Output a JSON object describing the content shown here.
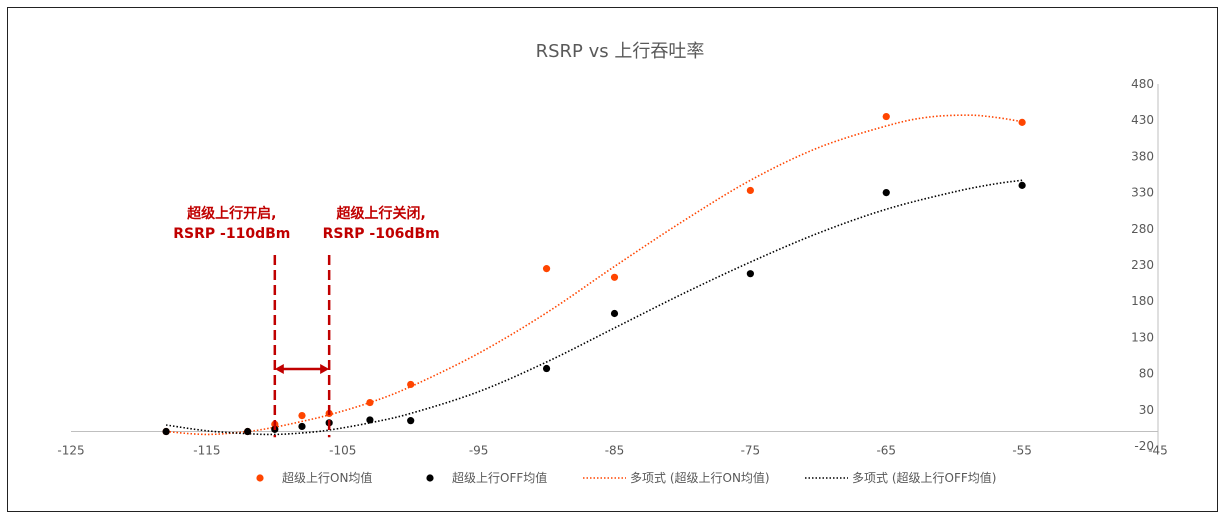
{
  "chart_data": {
    "type": "scatter",
    "title": "RSRP vs 上行吞吐率",
    "xlim": [
      -125,
      -45
    ],
    "ylim": [
      -20,
      480
    ],
    "x_ticks": [
      -125,
      -115,
      -105,
      -95,
      -85,
      -75,
      -65,
      -55,
      -45
    ],
    "y_ticks": [
      -20,
      30,
      80,
      130,
      180,
      230,
      280,
      330,
      380,
      430,
      480
    ],
    "x_tick_labels": [
      "-125",
      "-115",
      "-105",
      "-95",
      "-85",
      "-75",
      "-65",
      "-55",
      "-45"
    ],
    "y_tick_labels": [
      "-20",
      "30",
      "80",
      "130",
      "180",
      "230",
      "280",
      "330",
      "380",
      "430",
      "480"
    ],
    "grid": false,
    "legend_position": "bottom",
    "series": [
      {
        "name": "超级上行ON均值",
        "kind": "scatter",
        "color": "#ff4500",
        "points": [
          [
            -118,
            0
          ],
          [
            -112,
            0
          ],
          [
            -110,
            10
          ],
          [
            -108,
            22
          ],
          [
            -106,
            25
          ],
          [
            -103,
            40
          ],
          [
            -100,
            65
          ],
          [
            -90,
            225
          ],
          [
            -85,
            213
          ],
          [
            -75,
            333
          ],
          [
            -65,
            435
          ],
          [
            -55,
            427
          ]
        ]
      },
      {
        "name": "超级上行OFF均值",
        "kind": "scatter",
        "color": "#000000",
        "points": [
          [
            -118,
            0
          ],
          [
            -112,
            0
          ],
          [
            -110,
            3
          ],
          [
            -108,
            7
          ],
          [
            -106,
            12
          ],
          [
            -103,
            16
          ],
          [
            -100,
            15
          ],
          [
            -90,
            87
          ],
          [
            -85,
            163
          ],
          [
            -75,
            218
          ],
          [
            -65,
            330
          ],
          [
            -55,
            340
          ]
        ]
      },
      {
        "name": "多项式 (超级上行ON均值)",
        "kind": "trendline",
        "color": "#ff4500",
        "points": [
          [
            -118,
            0
          ],
          [
            -115,
            -4
          ],
          [
            -112,
            0
          ],
          [
            -110,
            6
          ],
          [
            -108,
            14
          ],
          [
            -106,
            23
          ],
          [
            -103,
            40
          ],
          [
            -100,
            62
          ],
          [
            -95,
            108
          ],
          [
            -90,
            164
          ],
          [
            -85,
            228
          ],
          [
            -80,
            290
          ],
          [
            -75,
            347
          ],
          [
            -70,
            392
          ],
          [
            -65,
            422
          ],
          [
            -62,
            434
          ],
          [
            -59,
            437
          ],
          [
            -57,
            434
          ],
          [
            -55,
            428
          ]
        ]
      },
      {
        "name": "多项式 (超级上行OFF均值)",
        "kind": "trendline",
        "color": "#000000",
        "points": [
          [
            -118,
            9
          ],
          [
            -115,
            1
          ],
          [
            -112,
            -3
          ],
          [
            -110,
            -4
          ],
          [
            -108,
            -2
          ],
          [
            -106,
            2
          ],
          [
            -103,
            12
          ],
          [
            -100,
            25
          ],
          [
            -95,
            55
          ],
          [
            -90,
            96
          ],
          [
            -85,
            143
          ],
          [
            -80,
            190
          ],
          [
            -75,
            234
          ],
          [
            -70,
            274
          ],
          [
            -65,
            307
          ],
          [
            -60,
            331
          ],
          [
            -57,
            342
          ],
          [
            -55,
            347
          ]
        ]
      }
    ],
    "annotations": [
      {
        "lines": [
          "超级上行开启,",
          "RSRP -110dBm"
        ],
        "x": -110
      },
      {
        "lines": [
          "超级上行关闭,",
          "RSRP -106dBm"
        ],
        "x": -106
      }
    ],
    "annotation_color": "#c00000"
  }
}
